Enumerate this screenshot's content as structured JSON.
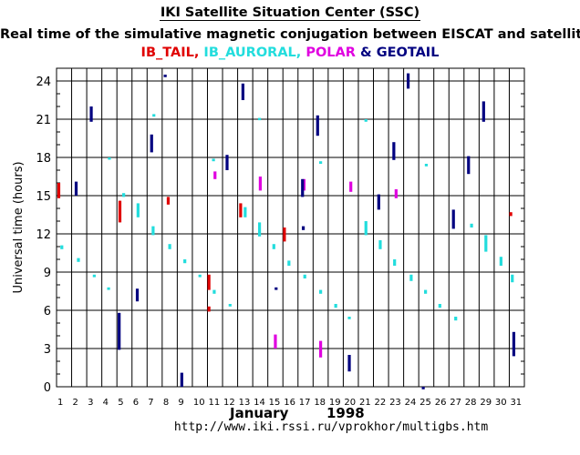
{
  "header": {
    "title": "IKI Satellite Situation Center (SSC)",
    "subtitle": "Real time of the simulative magnetic conjugation between EISCAT and satellites:"
  },
  "legend": {
    "items": [
      {
        "label": "IB_TAIL,",
        "color": "#e00000"
      },
      {
        "label": " IB_AURORAL,",
        "color": "#22dddd"
      },
      {
        "label": " POLAR",
        "color": "#e000e0"
      },
      {
        "label": " & ",
        "color": "#000080"
      },
      {
        "label": "GEOTAIL",
        "color": "#000080"
      }
    ]
  },
  "footer": {
    "month": "January",
    "year": "1998",
    "url": "http://www.iki.rssi.ru/vprokhor/multigbs.htm"
  },
  "chart_data": {
    "type": "scatter",
    "xlabel": "",
    "ylabel": "Universal time  (hours)",
    "xlim": [
      1,
      32
    ],
    "ylim": [
      0,
      25
    ],
    "x_ticks": [
      "1",
      "2",
      "3",
      "4",
      "5",
      "6",
      "7",
      "8",
      "9",
      "10",
      "11",
      "12",
      "13",
      "14",
      "15",
      "16",
      "17",
      "18",
      "19",
      "20",
      "21",
      "22",
      "23",
      "24",
      "25",
      "26",
      "27",
      "28",
      "29",
      "30",
      "31"
    ],
    "y_ticks": [
      0,
      3,
      6,
      9,
      12,
      15,
      18,
      21,
      24
    ],
    "grid": true,
    "series": [
      {
        "name": "IB_TAIL",
        "color": "#e00000",
        "segments": [
          [
            1.15,
            14.8,
            16.0
          ],
          [
            5.2,
            12.9,
            14.6
          ],
          [
            8.4,
            14.3,
            14.9
          ],
          [
            11.1,
            5.9,
            6.3
          ],
          [
            11.1,
            7.6,
            8.8
          ],
          [
            13.2,
            13.3,
            14.4
          ],
          [
            16.1,
            11.4,
            12.5
          ],
          [
            31.1,
            13.4,
            13.7
          ]
        ]
      },
      {
        "name": "IB_AURORAL",
        "color": "#22dddd",
        "segments": [
          [
            1.35,
            10.8,
            11.1
          ],
          [
            2.45,
            9.8,
            10.1
          ],
          [
            3.5,
            8.6,
            8.8
          ],
          [
            4.45,
            7.6,
            7.8
          ],
          [
            4.5,
            17.9,
            18.0
          ],
          [
            5.45,
            14.9,
            15.2
          ],
          [
            6.4,
            13.3,
            14.4
          ],
          [
            7.4,
            11.9,
            12.6
          ],
          [
            7.45,
            21.2,
            21.4
          ],
          [
            8.5,
            10.8,
            11.2
          ],
          [
            9.5,
            9.7,
            10.0
          ],
          [
            10.5,
            8.6,
            8.8
          ],
          [
            11.45,
            7.3,
            7.6
          ],
          [
            11.4,
            17.7,
            17.9
          ],
          [
            12.5,
            6.3,
            6.5
          ],
          [
            13.5,
            13.3,
            14.1
          ],
          [
            14.45,
            11.8,
            12.9
          ],
          [
            14.45,
            21.0,
            21.1
          ],
          [
            15.4,
            10.8,
            11.2
          ],
          [
            16.4,
            9.5,
            9.9
          ],
          [
            17.45,
            8.5,
            8.8
          ],
          [
            18.5,
            7.3,
            7.6
          ],
          [
            18.5,
            17.5,
            17.7
          ],
          [
            19.5,
            6.2,
            6.5
          ],
          [
            20.4,
            5.3,
            5.5
          ],
          [
            21.5,
            11.9,
            13.0
          ],
          [
            21.5,
            20.8,
            21.0
          ],
          [
            22.45,
            10.8,
            11.5
          ],
          [
            23.4,
            9.5,
            10.0
          ],
          [
            24.5,
            8.3,
            8.8
          ],
          [
            25.45,
            7.3,
            7.6
          ],
          [
            25.5,
            17.3,
            17.5
          ],
          [
            26.4,
            6.2,
            6.5
          ],
          [
            27.45,
            5.2,
            5.5
          ],
          [
            28.5,
            12.5,
            12.8
          ],
          [
            29.45,
            10.6,
            11.9
          ],
          [
            30.45,
            9.5,
            10.2
          ],
          [
            31.2,
            8.2,
            8.8
          ]
        ]
      },
      {
        "name": "POLAR",
        "color": "#e000e0",
        "segments": [
          [
            11.5,
            16.3,
            16.9
          ],
          [
            14.5,
            15.4,
            16.5
          ],
          [
            15.5,
            3.0,
            4.1
          ],
          [
            17.4,
            15.4,
            16.3
          ],
          [
            18.5,
            2.3,
            3.6
          ],
          [
            20.5,
            15.3,
            16.1
          ],
          [
            23.5,
            14.8,
            15.5
          ]
        ]
      },
      {
        "name": "GEOTAIL",
        "color": "#000080",
        "segments": [
          [
            2.3,
            15.0,
            16.1
          ],
          [
            3.3,
            20.8,
            22.0
          ],
          [
            5.15,
            2.9,
            5.8
          ],
          [
            6.35,
            6.7,
            7.7
          ],
          [
            7.3,
            18.4,
            19.8
          ],
          [
            8.2,
            24.3,
            24.5
          ],
          [
            9.3,
            0.0,
            1.1
          ],
          [
            12.3,
            17.0,
            18.2
          ],
          [
            13.35,
            22.5,
            23.8
          ],
          [
            15.55,
            7.6,
            7.8
          ],
          [
            17.3,
            14.9,
            16.3
          ],
          [
            17.35,
            12.3,
            12.6
          ],
          [
            18.3,
            19.7,
            21.3
          ],
          [
            20.4,
            1.2,
            2.5
          ],
          [
            22.35,
            13.9,
            15.1
          ],
          [
            23.35,
            17.8,
            19.2
          ],
          [
            24.3,
            23.4,
            24.6
          ],
          [
            25.3,
            -0.2,
            0.0
          ],
          [
            27.3,
            12.4,
            13.9
          ],
          [
            28.3,
            16.7,
            18.1
          ],
          [
            29.3,
            20.8,
            22.4
          ],
          [
            31.3,
            2.4,
            4.3
          ]
        ]
      }
    ]
  }
}
